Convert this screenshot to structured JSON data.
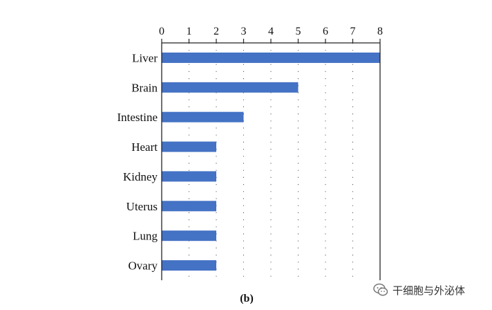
{
  "chart_data": {
    "type": "bar",
    "orientation": "horizontal",
    "categories": [
      "Liver",
      "Brain",
      "Intestine",
      "Heart",
      "Kidney",
      "Uterus",
      "Lung",
      "Ovary"
    ],
    "values": [
      8,
      5,
      3,
      2,
      2,
      2,
      2,
      2
    ],
    "xlim": [
      0,
      8
    ],
    "xticks": [
      0,
      1,
      2,
      3,
      4,
      5,
      6,
      7,
      8
    ],
    "x_axis_position": "top",
    "grid": "vertical dotted",
    "bar_color": "#4472c4",
    "panel_label": "(b)"
  },
  "watermark": {
    "icon": "wechat-icon",
    "text": "干细胞与外泌体"
  }
}
